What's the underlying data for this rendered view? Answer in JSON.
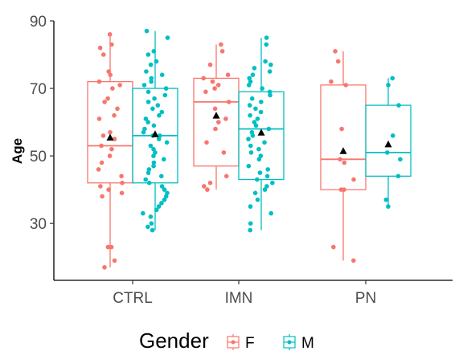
{
  "chart_data": {
    "type": "boxplot",
    "ylabel": "Age",
    "xlabel": "",
    "ylim": [
      16,
      90
    ],
    "yticks": [
      30,
      50,
      70,
      90
    ],
    "categories": [
      "CTRL",
      "IMN",
      "PN"
    ],
    "legend": {
      "title": "Gender",
      "position": "bottom",
      "entries": [
        {
          "key": "F",
          "label": "F",
          "color": "#F8766D"
        },
        {
          "key": "M",
          "label": "M",
          "color": "#00BFC4"
        }
      ]
    },
    "grid": false,
    "mean_marker": "black triangle",
    "groups": [
      {
        "category": "CTRL",
        "gender": "F",
        "color": "#F8766D",
        "whisker_low": 17,
        "q1": 42,
        "median": 53,
        "q3": 72,
        "whisker_high": 86,
        "mean": 55.5,
        "points": [
          86,
          83,
          82,
          80,
          75,
          74,
          72,
          71,
          70,
          67,
          66,
          64,
          62,
          61,
          57,
          56,
          55,
          53,
          52,
          50,
          48,
          46,
          44,
          42,
          41,
          40,
          39,
          38,
          23,
          23,
          19,
          17
        ]
      },
      {
        "category": "CTRL",
        "gender": "M",
        "color": "#00BFC4",
        "whisker_low": 28,
        "q1": 42,
        "median": 56,
        "q3": 70,
        "whisker_high": 87,
        "mean": 56.5,
        "points": [
          87,
          85,
          81,
          80,
          78,
          77,
          75,
          74,
          73,
          72,
          71,
          70,
          69,
          68,
          67,
          66,
          65,
          64,
          63,
          62,
          61,
          60,
          59,
          58,
          57,
          56,
          56,
          55,
          54,
          53,
          52,
          51,
          50,
          49,
          48,
          47,
          46,
          45,
          44,
          43,
          42,
          41,
          40,
          39,
          38,
          37,
          36,
          35,
          34,
          33,
          32,
          30,
          29,
          28
        ]
      },
      {
        "category": "IMN",
        "gender": "F",
        "color": "#F8766D",
        "whisker_low": 40,
        "q1": 47,
        "median": 66,
        "q3": 73,
        "whisker_high": 83,
        "mean": 62,
        "points": [
          83,
          81,
          77,
          74,
          73,
          72,
          71,
          70,
          69,
          66,
          64,
          61,
          60,
          58,
          54,
          51,
          44,
          42,
          41,
          40
        ]
      },
      {
        "category": "IMN",
        "gender": "M",
        "color": "#00BFC4",
        "whisker_low": 28,
        "q1": 43,
        "median": 58,
        "q3": 69,
        "whisker_high": 85,
        "mean": 57,
        "points": [
          85,
          83,
          78,
          77,
          76,
          75,
          74,
          73,
          72,
          71,
          70,
          69,
          68,
          67,
          66,
          65,
          64,
          63,
          62,
          61,
          60,
          59,
          58,
          57,
          56,
          55,
          54,
          53,
          52,
          51,
          50,
          49,
          47,
          46,
          45,
          44,
          43,
          42,
          41,
          40,
          39,
          37,
          35,
          33,
          30,
          28
        ]
      },
      {
        "category": "PN",
        "gender": "F",
        "color": "#F8766D",
        "whisker_low": 19,
        "q1": 40,
        "median": 49,
        "q3": 71,
        "whisker_high": 81,
        "mean": 51.5,
        "points": [
          81,
          78,
          72,
          71,
          58,
          49,
          48,
          43,
          40,
          40,
          23,
          19
        ]
      },
      {
        "category": "PN",
        "gender": "M",
        "color": "#00BFC4",
        "whisker_low": 35,
        "q1": 44,
        "median": 51,
        "q3": 65,
        "whisker_high": 73,
        "mean": 53.5,
        "points": [
          73,
          71,
          65,
          56,
          51,
          49,
          44,
          37,
          35
        ]
      }
    ]
  }
}
